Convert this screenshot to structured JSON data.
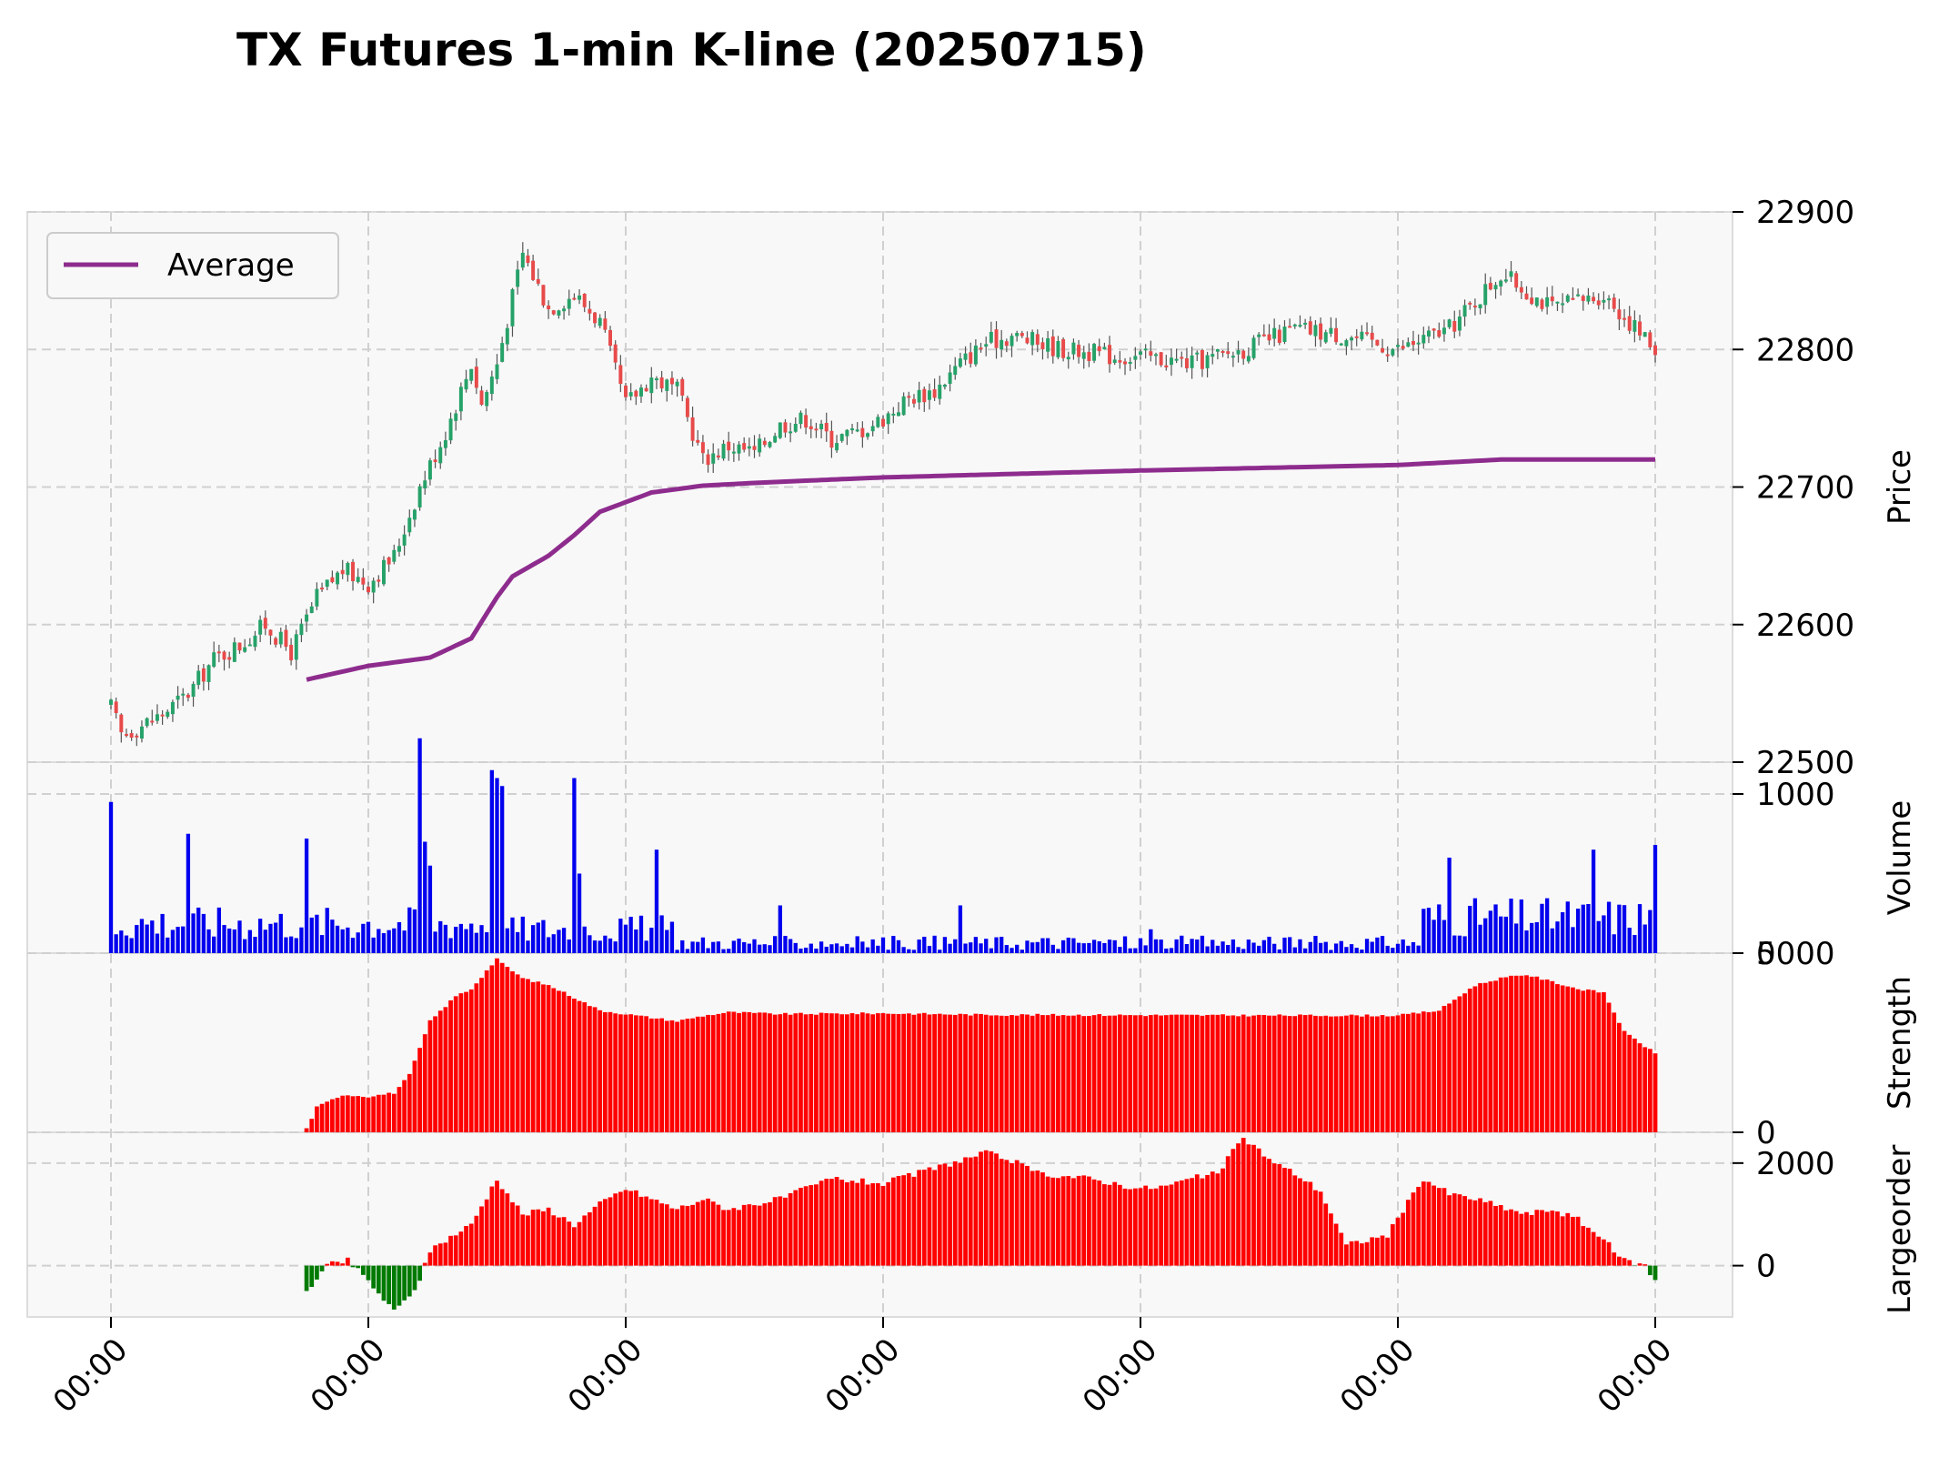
{
  "title": "TX Futures 1-min K-line (20250715)",
  "colors": {
    "up": "#26a269",
    "down": "#e84a4a",
    "wick": "#555555",
    "average": "#8e2c8e",
    "volume": "#0000ee",
    "strength": "#ff0000",
    "largeorder_pos": "#ff0000",
    "largeorder_neg": "#007a00"
  },
  "chart_data": [
    {
      "type": "candlestick",
      "ylabel": "Price",
      "ylim": [
        22500,
        22900
      ],
      "yticks": [
        "22500",
        "22600",
        "22700",
        "22800",
        "22900"
      ],
      "xticks": [
        "00:00",
        "00:00",
        "00:00",
        "00:00",
        "00:00",
        "00:00",
        "00:00"
      ],
      "legend": {
        "entries": [
          "Average"
        ],
        "placement": "top-left"
      },
      "n_bars": 301,
      "price_path": {
        "minute": [
          0,
          2,
          5,
          10,
          15,
          20,
          25,
          30,
          35,
          40,
          45,
          50,
          55,
          60,
          65,
          70,
          72,
          75,
          80,
          85,
          90,
          95,
          100,
          105,
          110,
          115,
          120,
          125,
          130,
          135,
          140,
          145,
          150,
          155,
          160,
          165,
          170,
          175,
          180,
          185,
          190,
          195,
          200,
          210,
          220,
          230,
          240,
          250,
          260,
          270,
          280,
          290,
          300
        ],
        "close": [
          22540,
          22520,
          22525,
          22535,
          22550,
          22575,
          22585,
          22600,
          22580,
          22620,
          22640,
          22630,
          22650,
          22700,
          22740,
          22790,
          22760,
          22790,
          22870,
          22830,
          22840,
          22820,
          22760,
          22780,
          22770,
          22720,
          22730,
          22725,
          22745,
          22750,
          22735,
          22740,
          22750,
          22765,
          22770,
          22790,
          22805,
          22810,
          22805,
          22800,
          22798,
          22795,
          22795,
          22790,
          22800,
          22815,
          22810,
          22800,
          22815,
          22855,
          22830,
          22840,
          22800
        ]
      },
      "average": {
        "minute": [
          38,
          50,
          58,
          62,
          70,
          75,
          78,
          85,
          90,
          95,
          105,
          115,
          125,
          150,
          200,
          250,
          270,
          300
        ],
        "value": [
          22560,
          22570,
          22574,
          22576,
          22590,
          22620,
          22635,
          22650,
          22665,
          22682,
          22696,
          22701,
          22703,
          22707,
          22712,
          22716,
          22720,
          22720
        ]
      }
    },
    {
      "type": "bar",
      "ylabel": "Volume",
      "ylim": [
        0,
        1200
      ],
      "yticks": [
        "0",
        "1000"
      ],
      "peaks": {
        "minute": [
          0,
          15,
          38,
          60,
          61,
          62,
          74,
          75,
          76,
          90,
          91,
          106,
          130,
          165,
          202,
          260,
          288,
          300
        ],
        "value": [
          950,
          750,
          720,
          1350,
          700,
          550,
          1150,
          1100,
          1050,
          1100,
          500,
          650,
          300,
          300,
          150,
          600,
          650,
          680
        ]
      }
    },
    {
      "type": "bar",
      "ylabel": "Strength",
      "ylim": [
        0,
        5000
      ],
      "yticks": [
        "0",
        "5000"
      ],
      "start_minute": 38,
      "series": {
        "minute": [
          38,
          40,
          45,
          50,
          55,
          58,
          62,
          67,
          70,
          75,
          76,
          80,
          85,
          88,
          95,
          105,
          110,
          115,
          120,
          130,
          150,
          170,
          200,
          230,
          250,
          258,
          265,
          270,
          275,
          285,
          290,
          294,
          300
        ],
        "value": [
          100,
          700,
          1050,
          1000,
          1100,
          1600,
          3100,
          3800,
          4000,
          4850,
          4700,
          4300,
          4100,
          3900,
          3400,
          3200,
          3100,
          3250,
          3350,
          3300,
          3320,
          3280,
          3270,
          3260,
          3260,
          3400,
          4100,
          4300,
          4400,
          4000,
          3900,
          2800,
          2200
        ]
      }
    },
    {
      "type": "bar",
      "ylabel": "Largeorder",
      "ylim": [
        -1000,
        2600
      ],
      "yticks": [
        "0",
        "2000"
      ],
      "start_minute": 38,
      "series": {
        "minute": [
          38,
          42,
          46,
          50,
          55,
          57,
          60,
          62,
          65,
          70,
          75,
          77,
          80,
          85,
          90,
          95,
          100,
          105,
          110,
          115,
          120,
          130,
          140,
          150,
          160,
          170,
          175,
          180,
          190,
          200,
          205,
          210,
          215,
          220,
          226,
          230,
          235,
          240,
          248,
          255,
          260,
          265,
          270,
          275,
          280,
          285,
          290,
          294,
          298,
          300
        ],
        "value": [
          -500,
          0,
          100,
          -300,
          -900,
          -700,
          -300,
          300,
          500,
          800,
          1700,
          1400,
          1000,
          1100,
          800,
          1200,
          1500,
          1300,
          1100,
          1300,
          1100,
          1300,
          1700,
          1600,
          1900,
          2200,
          2050,
          1800,
          1700,
          1500,
          1550,
          1700,
          1800,
          2500,
          2000,
          1800,
          1450,
          400,
          600,
          1700,
          1400,
          1300,
          1150,
          1000,
          1100,
          900,
          500,
          100,
          0,
          -300
        ]
      }
    }
  ]
}
